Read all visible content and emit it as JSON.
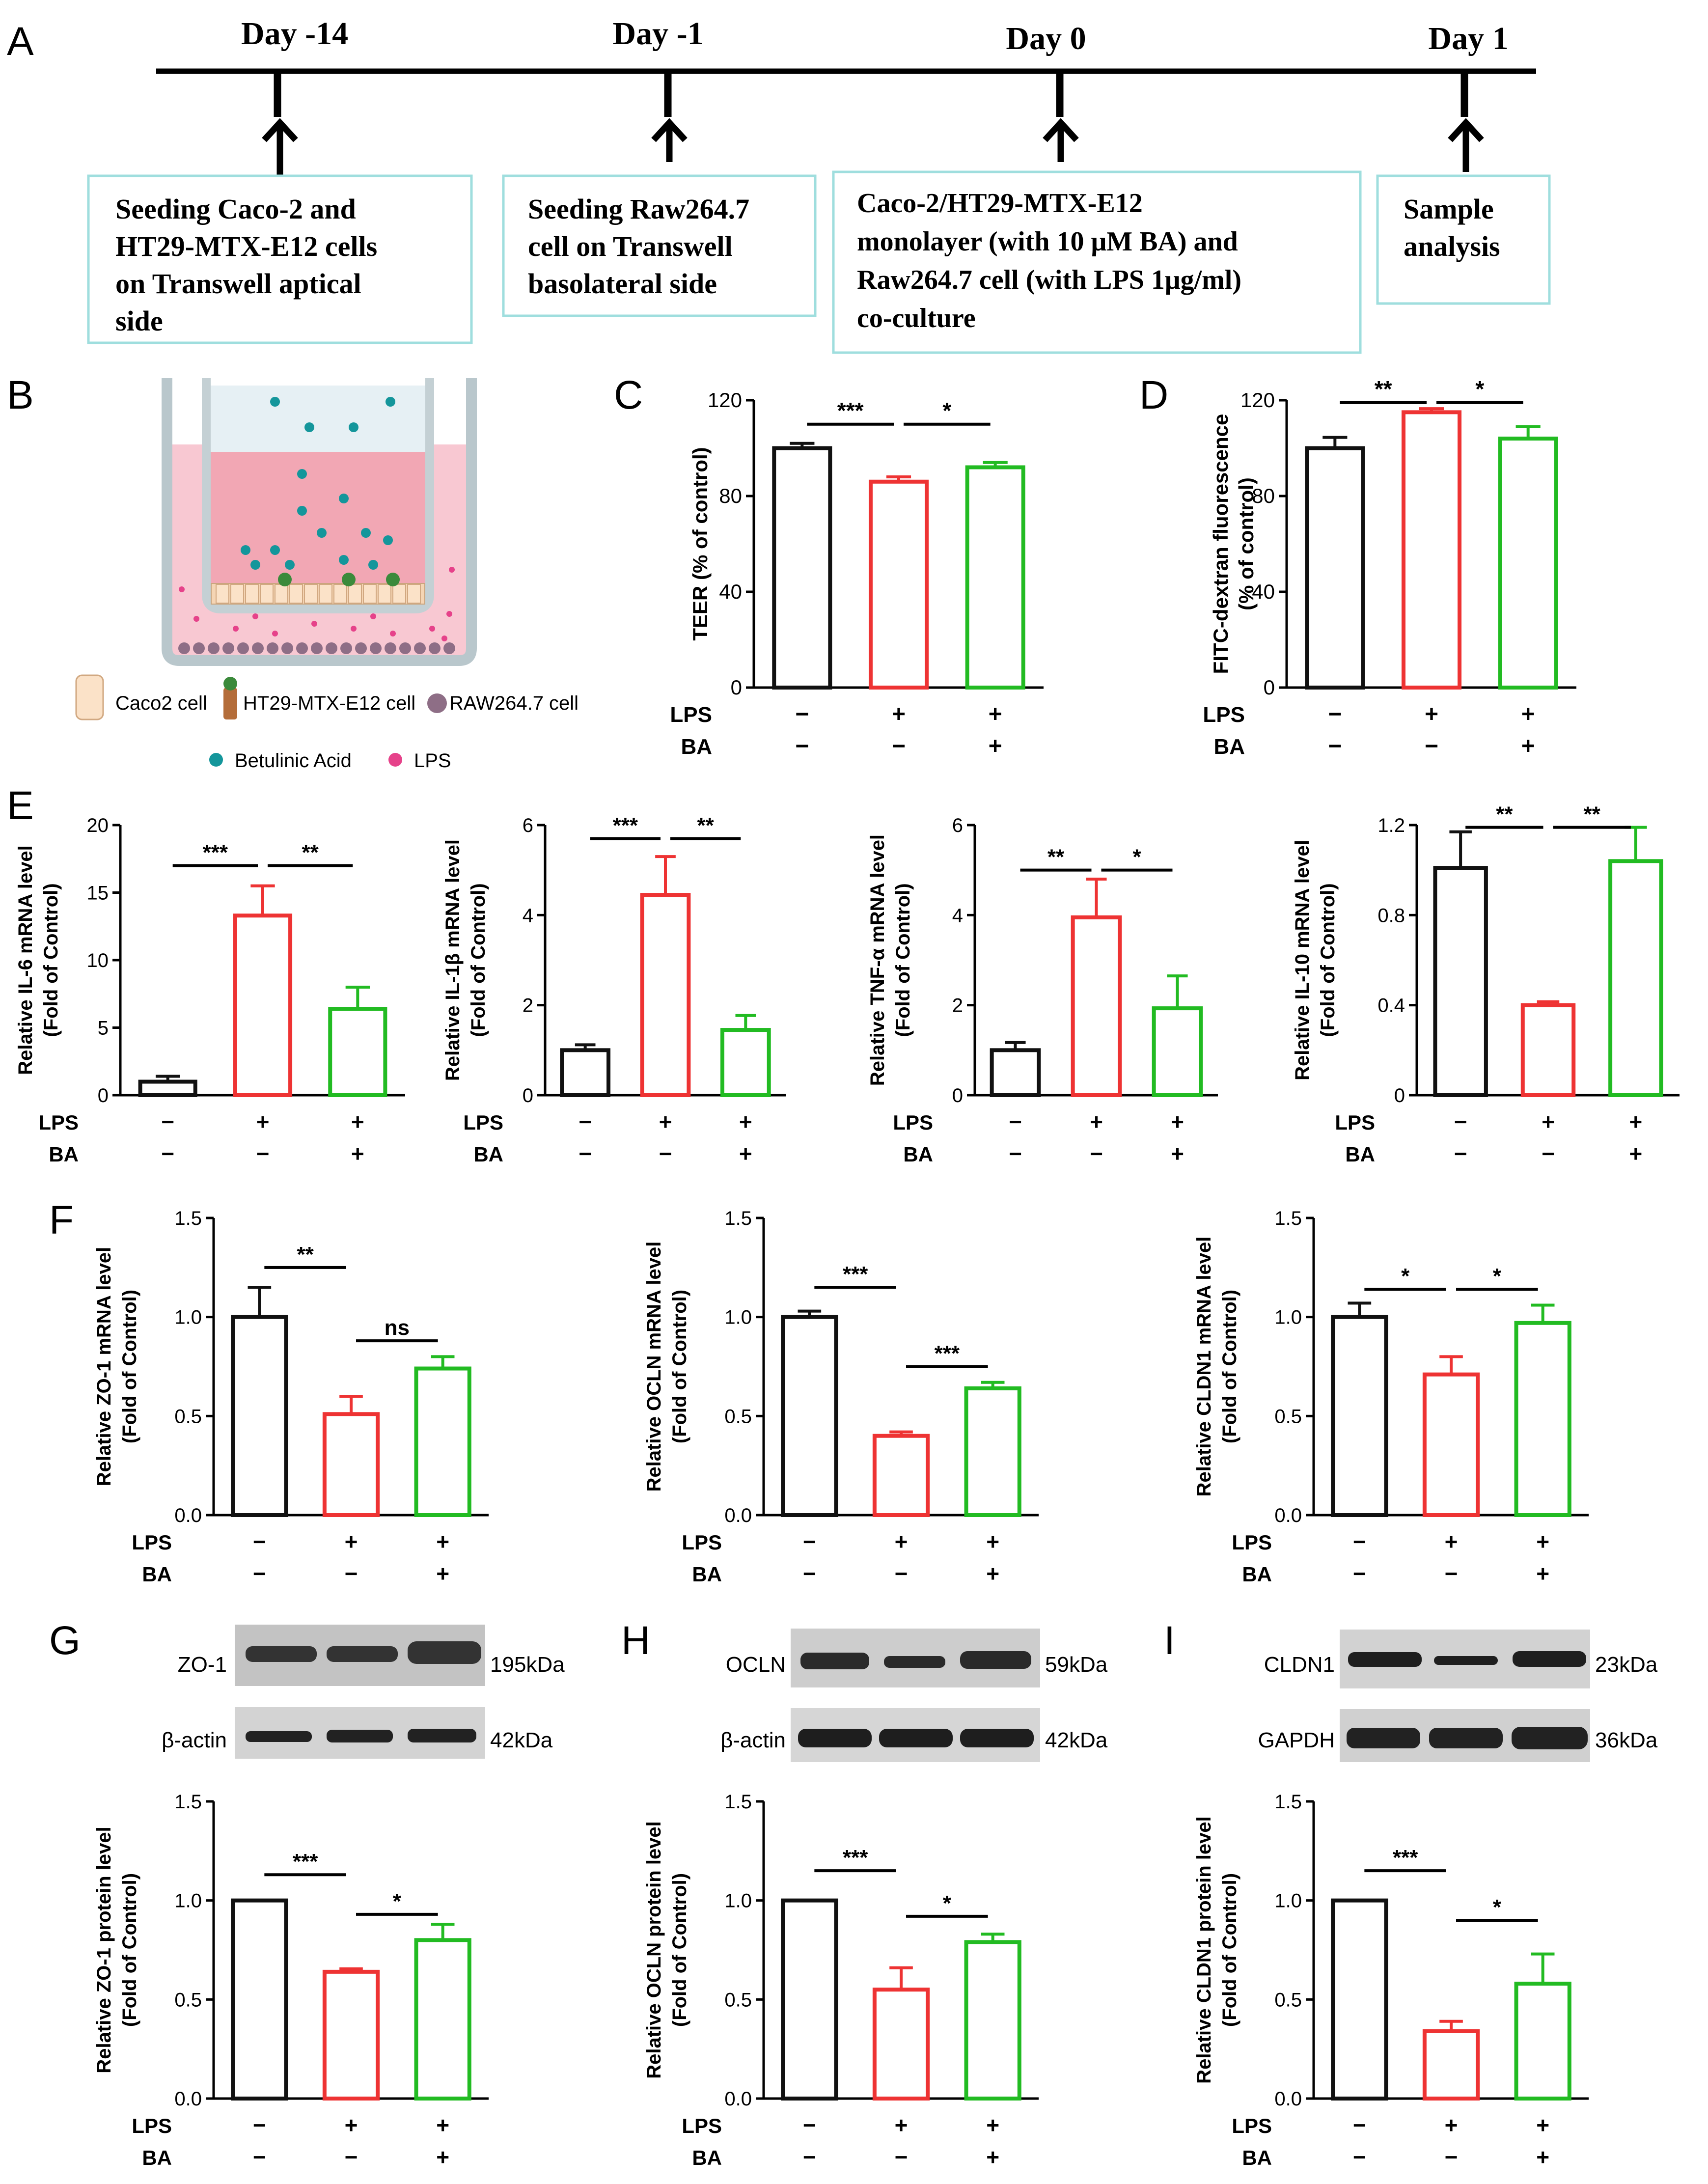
{
  "colors": {
    "control": "#111111",
    "lps": "#ee3333",
    "ba": "#22bb22",
    "timeline_box": "#9fdede",
    "teal": "#14969b",
    "pink": "#e6428a"
  },
  "panel_labels": {
    "A": "A",
    "B": "B",
    "C": "C",
    "D": "D",
    "E": "E",
    "F": "F",
    "G": "G",
    "H": "H",
    "I": "I"
  },
  "timeline": {
    "days": [
      "Day -14",
      "Day -1",
      "Day 0",
      "Day 1"
    ],
    "boxes": [
      [
        "Seeding Caco-2 and",
        "HT29-MTX-E12 cells",
        "on Transwell aptical",
        "side"
      ],
      [
        "Seeding Raw264.7",
        "cell on Transwell",
        "basolateral side"
      ],
      [
        "Caco-2/HT29-MTX-E12",
        "monolayer (with 10 μM BA) and",
        "Raw264.7 cell (with LPS 1μg/ml)",
        "co-culture"
      ],
      [
        "Sample",
        "analysis"
      ]
    ]
  },
  "schematic": {
    "legend_cells": [
      "Caco2 cell",
      "HT29-MTX-E12 cell",
      "RAW264.7 cell"
    ],
    "legend_compounds": [
      "Betulinic Acid",
      "LPS"
    ]
  },
  "treatment": {
    "row_labels": [
      "LPS",
      "BA"
    ],
    "LPS": [
      "−",
      "+",
      "+"
    ],
    "BA": [
      "−",
      "−",
      "+"
    ]
  },
  "blots": {
    "G": {
      "target": "ZO-1",
      "target_kda": "195kDa",
      "loading": "β-actin",
      "loading_kda": "42kDa"
    },
    "H": {
      "target": "OCLN",
      "target_kda": "59kDa",
      "loading": "β-actin",
      "loading_kda": "42kDa"
    },
    "I": {
      "target": "CLDN1",
      "target_kda": "23kDa",
      "loading": "GAPDH",
      "loading_kda": "36kDa"
    }
  },
  "chart_data": [
    {
      "id": "C",
      "type": "bar",
      "ylabel": [
        "TEER (% of control)"
      ],
      "ylim": [
        0,
        120
      ],
      "yticks": [
        0,
        40,
        80,
        120
      ],
      "ytick_labels": [
        "0",
        "40",
        "80",
        "120"
      ],
      "categories": [
        "Control",
        "LPS",
        "LPS+BA"
      ],
      "values": [
        100,
        86,
        92
      ],
      "errors": [
        2,
        2,
        2
      ],
      "sig": [
        {
          "from": 0,
          "to": 1,
          "label": "***",
          "y": 110
        },
        {
          "from": 1,
          "to": 2,
          "label": "*",
          "y": 110
        }
      ]
    },
    {
      "id": "D",
      "type": "bar",
      "ylabel": [
        "FITC-dextran fluorescence",
        "(% of control)"
      ],
      "ylim": [
        0,
        120
      ],
      "yticks": [
        0,
        40,
        80,
        120
      ],
      "ytick_labels": [
        "0",
        "40",
        "80",
        "120"
      ],
      "categories": [
        "Control",
        "LPS",
        "LPS+BA"
      ],
      "values": [
        100,
        115,
        104
      ],
      "errors": [
        4.5,
        1.5,
        5
      ],
      "sig": [
        {
          "from": 0,
          "to": 1,
          "label": "**",
          "y": 119
        },
        {
          "from": 1,
          "to": 2,
          "label": "*",
          "y": 119
        }
      ]
    },
    {
      "id": "E1",
      "type": "bar",
      "ylabel": [
        "Relative IL-6 mRNA level",
        "(Fold of Control)"
      ],
      "ylim": [
        0,
        20
      ],
      "yticks": [
        0,
        5,
        10,
        15,
        20
      ],
      "ytick_labels": [
        "0",
        "5",
        "10",
        "15",
        "20"
      ],
      "categories": [
        "Control",
        "LPS",
        "LPS+BA"
      ],
      "values": [
        1.0,
        13.3,
        6.4
      ],
      "errors": [
        0.4,
        2.2,
        1.6
      ],
      "sig": [
        {
          "from": 0,
          "to": 1,
          "label": "***",
          "y": 17
        },
        {
          "from": 1,
          "to": 2,
          "label": "**",
          "y": 17
        }
      ]
    },
    {
      "id": "E2",
      "type": "bar",
      "ylabel": [
        "Relative IL-1β mRNA level",
        "(Fold of Control)"
      ],
      "ylim": [
        0,
        6
      ],
      "yticks": [
        0,
        2,
        4,
        6
      ],
      "ytick_labels": [
        "0",
        "2",
        "4",
        "6"
      ],
      "categories": [
        "Control",
        "LPS",
        "LPS+BA"
      ],
      "values": [
        1.0,
        4.45,
        1.45
      ],
      "errors": [
        0.12,
        0.85,
        0.32
      ],
      "sig": [
        {
          "from": 0,
          "to": 1,
          "label": "***",
          "y": 5.7
        },
        {
          "from": 1,
          "to": 2,
          "label": "**",
          "y": 5.7
        }
      ]
    },
    {
      "id": "E3",
      "type": "bar",
      "ylabel": [
        "Relative TNF-α mRNA level",
        "(Fold of Control)"
      ],
      "ylim": [
        0,
        6
      ],
      "yticks": [
        0,
        2,
        4,
        6
      ],
      "ytick_labels": [
        "0",
        "2",
        "4",
        "6"
      ],
      "categories": [
        "Control",
        "LPS",
        "LPS+BA"
      ],
      "values": [
        1.0,
        3.95,
        1.93
      ],
      "errors": [
        0.17,
        0.85,
        0.72
      ],
      "sig": [
        {
          "from": 0,
          "to": 1,
          "label": "**",
          "y": 5.0
        },
        {
          "from": 1,
          "to": 2,
          "label": "*",
          "y": 5.0
        }
      ]
    },
    {
      "id": "E4",
      "type": "bar",
      "ylabel": [
        "Relative IL-10 mRNA level",
        "(Fold of Control)"
      ],
      "ylim": [
        0,
        1.2
      ],
      "yticks": [
        0,
        0.4,
        0.8,
        1.2
      ],
      "ytick_labels": [
        "0",
        "0.4",
        "0.8",
        "1.2"
      ],
      "categories": [
        "Control",
        "LPS",
        "LPS+BA"
      ],
      "values": [
        1.01,
        0.4,
        1.04
      ],
      "errors": [
        0.16,
        0.015,
        0.15
      ],
      "sig": [
        {
          "from": 0,
          "to": 1,
          "label": "**",
          "y": 1.19
        },
        {
          "from": 1,
          "to": 2,
          "label": "**",
          "y": 1.19
        }
      ]
    },
    {
      "id": "F1",
      "type": "bar",
      "ylabel": [
        "Relative ZO-1 mRNA level",
        "(Fold of Control)"
      ],
      "ylim": [
        0,
        1.5
      ],
      "yticks": [
        0,
        0.5,
        1.0,
        1.5
      ],
      "ytick_labels": [
        "0.0",
        "0.5",
        "1.0",
        "1.5"
      ],
      "categories": [
        "Control",
        "LPS",
        "LPS+BA"
      ],
      "values": [
        1.0,
        0.51,
        0.74
      ],
      "errors": [
        0.15,
        0.09,
        0.06
      ],
      "sig": [
        {
          "from": 0,
          "to": 1,
          "label": "**",
          "y": 1.25
        },
        {
          "from": 1,
          "to": 2,
          "label": "ns",
          "y": 0.88
        }
      ]
    },
    {
      "id": "F2",
      "type": "bar",
      "ylabel": [
        "Relative OCLN mRNA level",
        "(Fold of Control)"
      ],
      "ylim": [
        0,
        1.5
      ],
      "yticks": [
        0,
        0.5,
        1.0,
        1.5
      ],
      "ytick_labels": [
        "0.0",
        "0.5",
        "1.0",
        "1.5"
      ],
      "categories": [
        "Control",
        "LPS",
        "LPS+BA"
      ],
      "values": [
        1.0,
        0.4,
        0.64
      ],
      "errors": [
        0.03,
        0.02,
        0.03
      ],
      "sig": [
        {
          "from": 0,
          "to": 1,
          "label": "***",
          "y": 1.15
        },
        {
          "from": 1,
          "to": 2,
          "label": "***",
          "y": 0.75
        }
      ]
    },
    {
      "id": "F3",
      "type": "bar",
      "ylabel": [
        "Relative CLDN1 mRNA level",
        "(Fold of Control)"
      ],
      "ylim": [
        0,
        1.5
      ],
      "yticks": [
        0,
        0.5,
        1.0,
        1.5
      ],
      "ytick_labels": [
        "0.0",
        "0.5",
        "1.0",
        "1.5"
      ],
      "categories": [
        "Control",
        "LPS",
        "LPS+BA"
      ],
      "values": [
        1.0,
        0.71,
        0.97
      ],
      "errors": [
        0.07,
        0.09,
        0.09
      ],
      "sig": [
        {
          "from": 0,
          "to": 1,
          "label": "*",
          "y": 1.14
        },
        {
          "from": 1,
          "to": 2,
          "label": "*",
          "y": 1.14
        }
      ]
    },
    {
      "id": "G",
      "type": "bar",
      "ylabel": [
        "Relative ZO-1 protein level",
        "(Fold of Control)"
      ],
      "ylim": [
        0,
        1.5
      ],
      "yticks": [
        0,
        0.5,
        1.0,
        1.5
      ],
      "ytick_labels": [
        "0.0",
        "0.5",
        "1.0",
        "1.5"
      ],
      "categories": [
        "Control",
        "LPS",
        "LPS+BA"
      ],
      "values": [
        1.0,
        0.64,
        0.8
      ],
      "errors": [
        0,
        0.015,
        0.08
      ],
      "sig": [
        {
          "from": 0,
          "to": 1,
          "label": "***",
          "y": 1.13
        },
        {
          "from": 1,
          "to": 2,
          "label": "*",
          "y": 0.93
        }
      ]
    },
    {
      "id": "H",
      "type": "bar",
      "ylabel": [
        "Relative OCLN protein level",
        "(Fold of Control)"
      ],
      "ylim": [
        0,
        1.5
      ],
      "yticks": [
        0,
        0.5,
        1.0,
        1.5
      ],
      "ytick_labels": [
        "0.0",
        "0.5",
        "1.0",
        "1.5"
      ],
      "categories": [
        "Control",
        "LPS",
        "LPS+BA"
      ],
      "values": [
        1.0,
        0.55,
        0.79
      ],
      "errors": [
        0,
        0.11,
        0.04
      ],
      "sig": [
        {
          "from": 0,
          "to": 1,
          "label": "***",
          "y": 1.15
        },
        {
          "from": 1,
          "to": 2,
          "label": "*",
          "y": 0.92
        }
      ]
    },
    {
      "id": "I",
      "type": "bar",
      "ylabel": [
        "Relative CLDN1 protein level",
        "(Fold of Control)"
      ],
      "ylim": [
        0,
        1.5
      ],
      "yticks": [
        0,
        0.5,
        1.0,
        1.5
      ],
      "ytick_labels": [
        "0.0",
        "0.5",
        "1.0",
        "1.5"
      ],
      "categories": [
        "Control",
        "LPS",
        "LPS+BA"
      ],
      "values": [
        1.0,
        0.34,
        0.58
      ],
      "errors": [
        0,
        0.05,
        0.15
      ],
      "sig": [
        {
          "from": 0,
          "to": 1,
          "label": "***",
          "y": 1.15
        },
        {
          "from": 1,
          "to": 2,
          "label": "*",
          "y": 0.9
        }
      ]
    }
  ]
}
